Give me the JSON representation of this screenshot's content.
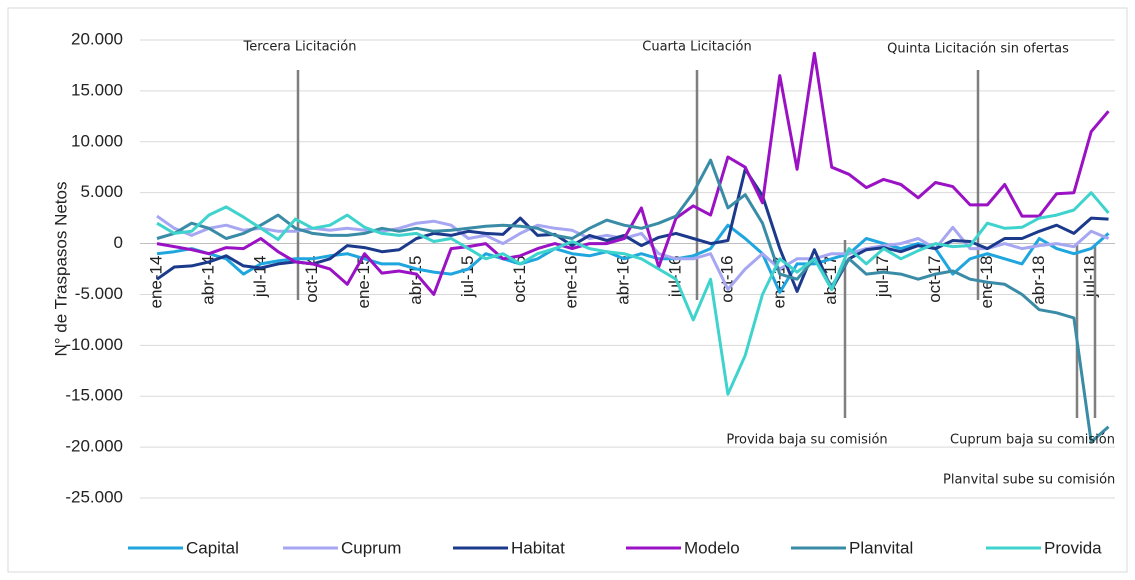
{
  "chart_data": {
    "type": "line",
    "y_label": "N° de Traspasos Netos",
    "categories": [
      "ene-14",
      null,
      null,
      "abr-14",
      null,
      null,
      "jul-14",
      null,
      null,
      "oct-14",
      null,
      null,
      "ene-15",
      null,
      null,
      "abr-15",
      null,
      null,
      "jul-15",
      null,
      null,
      "oct-15",
      null,
      null,
      "ene-16",
      null,
      null,
      "abr-16",
      null,
      null,
      "jul-16",
      null,
      null,
      "oct-16",
      null,
      null,
      "ene-17",
      null,
      null,
      "abr-17",
      null,
      null,
      "jul-17",
      null,
      null,
      "oct-17",
      null,
      null,
      "ene-18",
      null,
      null,
      "abr-18",
      null,
      null,
      "jul-18",
      null
    ],
    "series": [
      {
        "name": "Capital",
        "color": "#1fa6de",
        "values": [
          -1000,
          -800,
          -500,
          -1000,
          -1500,
          -3000,
          -2000,
          -1700,
          -1500,
          -1500,
          -1200,
          -1000,
          -1500,
          -2000,
          -2000,
          -2500,
          -2800,
          -3000,
          -2500,
          -1000,
          -1500,
          -2000,
          -1500,
          -500,
          -1000,
          -1200,
          -800,
          -1500,
          -1000,
          -1500,
          -1500,
          -1200,
          -500,
          1800,
          500,
          -1000,
          -4800,
          -2000,
          -2000,
          -1500,
          -1000,
          500,
          0,
          -500,
          0,
          -500,
          -3000,
          -1500,
          -1000,
          -1500,
          -2000,
          500,
          -500,
          -1000,
          -500,
          1000
        ]
      },
      {
        "name": "Cuprum",
        "color": "#a6a6f2",
        "values": [
          2700,
          1500,
          800,
          1500,
          1800,
          1300,
          1500,
          1200,
          1200,
          1500,
          1300,
          1500,
          1300,
          1200,
          1500,
          2000,
          2200,
          1800,
          500,
          800,
          0,
          1000,
          1800,
          1500,
          1300,
          500,
          800,
          500,
          1000,
          -1000,
          -1500,
          -1500,
          -1000,
          -4500,
          -2500,
          -1000,
          -2500,
          -1500,
          -1500,
          -1000,
          -1000,
          -500,
          -200,
          0,
          500,
          -500,
          1600,
          -500,
          -500,
          0,
          -500,
          -200,
          0,
          -300,
          1200,
          500
        ]
      },
      {
        "name": "Habitat",
        "color": "#1c3a8c",
        "values": [
          -3500,
          -2300,
          -2200,
          -1800,
          -1200,
          -2200,
          -2400,
          -2000,
          -1800,
          -2000,
          -1500,
          -200,
          -400,
          -800,
          -600,
          500,
          1000,
          800,
          1200,
          1000,
          900,
          2500,
          800,
          900,
          -200,
          800,
          300,
          800,
          -200,
          600,
          1000,
          500,
          0,
          300,
          7300,
          4700,
          -500,
          -4700,
          -600,
          -4500,
          -1500,
          -600,
          -400,
          -800,
          -200,
          -500,
          300,
          200,
          -500,
          500,
          500,
          1200,
          1800,
          1000,
          2500,
          2400
        ]
      },
      {
        "name": "Modelo",
        "color": "#9a12c4",
        "values": [
          0,
          -300,
          -600,
          -1000,
          -400,
          -500,
          500,
          -800,
          -1800,
          -2000,
          -2500,
          -4000,
          -1000,
          -2900,
          -2700,
          -3000,
          -5000,
          -500,
          -300,
          0,
          -1500,
          -1200,
          -500,
          0,
          -500,
          0,
          0,
          500,
          3500,
          -2300,
          2500,
          3700,
          2800,
          8500,
          7500,
          4000,
          16500,
          7300,
          18700,
          7500,
          6800,
          5500,
          6300,
          5800,
          4500,
          6000,
          5600,
          3800,
          3800,
          5800,
          2700,
          2700,
          4900,
          5000,
          11000,
          13000
        ]
      },
      {
        "name": "Planvital",
        "color": "#3a8ca6",
        "values": [
          500,
          1000,
          2000,
          1500,
          500,
          1000,
          1800,
          2800,
          1500,
          1000,
          800,
          800,
          1000,
          1500,
          1200,
          1500,
          1200,
          1300,
          1500,
          1700,
          1800,
          1700,
          1500,
          800,
          500,
          1500,
          2300,
          1800,
          1500,
          2000,
          2700,
          5000,
          8200,
          3500,
          4800,
          2000,
          -3000,
          -3500,
          -1500,
          -4200,
          -1500,
          -3000,
          -2800,
          -3000,
          -3500,
          -3000,
          -2700,
          -3500,
          -3800,
          -4000,
          -5000,
          -6500,
          -6800,
          -7300,
          -19500,
          -18000
        ]
      },
      {
        "name": "Provida",
        "color": "#3fd3cd",
        "values": [
          2000,
          1000,
          1200,
          2800,
          3600,
          2600,
          1500,
          400,
          2400,
          1500,
          1800,
          2800,
          1600,
          1000,
          800,
          1000,
          200,
          500,
          -500,
          -1500,
          -1000,
          -2000,
          -1000,
          -500,
          200,
          -500,
          -800,
          -1000,
          -1500,
          -2500,
          -3500,
          -7500,
          -3500,
          -14800,
          -11000,
          -5000,
          -1500,
          -2800,
          -1500,
          -4500,
          -500,
          -2000,
          -500,
          -1500,
          -700,
          0,
          -300,
          -200,
          2000,
          1500,
          1600,
          2500,
          2800,
          3300,
          5000,
          3000
        ]
      }
    ],
    "ylim": [
      -25000,
      20000
    ],
    "yticks": [
      {
        "value": -25000,
        "label": "-25.000"
      },
      {
        "value": -20000,
        "label": "-20.000"
      },
      {
        "value": -15000,
        "label": "-15.000"
      },
      {
        "value": -10000,
        "label": "-10.000"
      },
      {
        "value": -5000,
        "label": "-5.000"
      },
      0,
      {
        "value": 5000,
        "label": "5.000"
      },
      {
        "value": 10000,
        "label": "10.000"
      },
      {
        "value": 15000,
        "label": "15.000"
      },
      {
        "value": 20000,
        "label": "20.000"
      }
    ],
    "grid": true,
    "legend": "bottom",
    "annotations": [
      {
        "text": "Tercera Licitación"
      },
      {
        "text": "Cuarta Licitación"
      },
      {
        "text": "Quinta Licitación sin ofertas"
      },
      {
        "text": "Provida baja su comisión"
      },
      {
        "text": "Cuprum baja su comisión"
      },
      {
        "text": "Planvital sube su comisión"
      }
    ]
  }
}
